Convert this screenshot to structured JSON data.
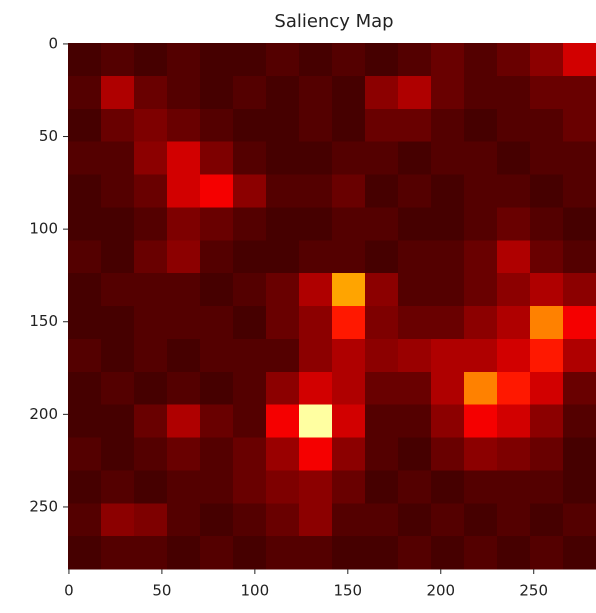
{
  "chart_data": {
    "type": "heatmap",
    "title": "Saliency Map",
    "colormap": "hot",
    "clim": [
      0,
      1
    ],
    "xlim": [
      -0.5,
      283.5
    ],
    "ylim": [
      283.5,
      -0.5
    ],
    "xticks": [
      0,
      50,
      100,
      150,
      200,
      250
    ],
    "yticks": [
      0,
      50,
      100,
      150,
      200,
      250
    ],
    "z": [
      [
        0.1,
        0.12,
        0.1,
        0.12,
        0.1,
        0.1,
        0.12,
        0.1,
        0.12,
        0.1,
        0.12,
        0.15,
        0.12,
        0.15,
        0.2,
        0.3
      ],
      [
        0.12,
        0.25,
        0.15,
        0.12,
        0.1,
        0.12,
        0.1,
        0.12,
        0.1,
        0.2,
        0.25,
        0.15,
        0.12,
        0.12,
        0.15,
        0.15
      ],
      [
        0.1,
        0.15,
        0.18,
        0.15,
        0.12,
        0.1,
        0.1,
        0.12,
        0.1,
        0.15,
        0.15,
        0.12,
        0.1,
        0.12,
        0.12,
        0.15
      ],
      [
        0.12,
        0.12,
        0.2,
        0.3,
        0.18,
        0.12,
        0.1,
        0.1,
        0.12,
        0.12,
        0.1,
        0.12,
        0.12,
        0.1,
        0.12,
        0.12
      ],
      [
        0.1,
        0.12,
        0.15,
        0.3,
        0.35,
        0.2,
        0.12,
        0.12,
        0.15,
        0.1,
        0.12,
        0.1,
        0.12,
        0.12,
        0.1,
        0.12
      ],
      [
        0.1,
        0.1,
        0.12,
        0.18,
        0.15,
        0.12,
        0.1,
        0.1,
        0.12,
        0.12,
        0.1,
        0.1,
        0.12,
        0.15,
        0.12,
        0.1
      ],
      [
        0.12,
        0.1,
        0.15,
        0.2,
        0.12,
        0.1,
        0.1,
        0.12,
        0.12,
        0.1,
        0.12,
        0.12,
        0.15,
        0.25,
        0.15,
        0.12
      ],
      [
        0.1,
        0.12,
        0.12,
        0.12,
        0.1,
        0.12,
        0.15,
        0.25,
        0.6,
        0.2,
        0.12,
        0.12,
        0.15,
        0.2,
        0.25,
        0.2
      ],
      [
        0.1,
        0.1,
        0.12,
        0.12,
        0.12,
        0.1,
        0.15,
        0.2,
        0.4,
        0.18,
        0.15,
        0.15,
        0.2,
        0.25,
        0.55,
        0.35
      ],
      [
        0.12,
        0.1,
        0.12,
        0.1,
        0.12,
        0.12,
        0.12,
        0.2,
        0.25,
        0.2,
        0.22,
        0.25,
        0.25,
        0.3,
        0.4,
        0.25
      ],
      [
        0.1,
        0.12,
        0.1,
        0.12,
        0.1,
        0.12,
        0.2,
        0.3,
        0.25,
        0.15,
        0.15,
        0.25,
        0.55,
        0.4,
        0.3,
        0.15
      ],
      [
        0.1,
        0.1,
        0.15,
        0.25,
        0.15,
        0.12,
        0.35,
        0.9,
        0.3,
        0.12,
        0.12,
        0.2,
        0.35,
        0.3,
        0.2,
        0.12
      ],
      [
        0.12,
        0.1,
        0.12,
        0.15,
        0.12,
        0.15,
        0.22,
        0.35,
        0.2,
        0.12,
        0.1,
        0.15,
        0.2,
        0.18,
        0.15,
        0.1
      ],
      [
        0.1,
        0.12,
        0.1,
        0.12,
        0.12,
        0.15,
        0.18,
        0.2,
        0.15,
        0.1,
        0.12,
        0.1,
        0.12,
        0.12,
        0.12,
        0.1
      ],
      [
        0.12,
        0.2,
        0.18,
        0.12,
        0.1,
        0.12,
        0.15,
        0.2,
        0.12,
        0.12,
        0.1,
        0.12,
        0.1,
        0.12,
        0.1,
        0.12
      ],
      [
        0.1,
        0.12,
        0.12,
        0.1,
        0.12,
        0.1,
        0.12,
        0.12,
        0.1,
        0.1,
        0.12,
        0.1,
        0.12,
        0.1,
        0.12,
        0.1
      ]
    ]
  }
}
